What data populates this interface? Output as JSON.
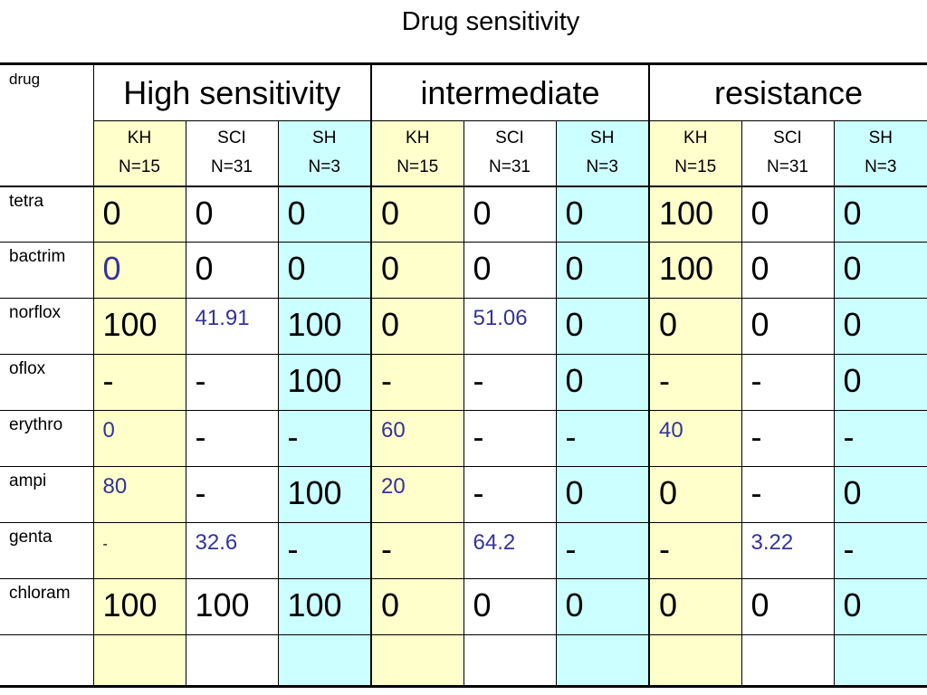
{
  "title": "Drug sensitivity",
  "drug_header": "drug",
  "groups": [
    "High sensitivity",
    "intermediate",
    "resistance"
  ],
  "subheaders": [
    {
      "name": "KH",
      "n": "N=15"
    },
    {
      "name": "SCI",
      "n": "N=31"
    },
    {
      "name": "SH",
      "n": "N=3"
    },
    {
      "name": "KH",
      "n": "N=15"
    },
    {
      "name": "SCI",
      "n": "N=31"
    },
    {
      "name": "SH",
      "n": "N=3"
    },
    {
      "name": "KH",
      "n": "N=15"
    },
    {
      "name": "SCI",
      "n": "N=31"
    },
    {
      "name": "SH",
      "n": "N=3"
    }
  ],
  "rows": [
    {
      "drug": "tetra",
      "values": [
        "0",
        "0",
        "0",
        "0",
        "0",
        "0",
        "100",
        "0",
        "0"
      ]
    },
    {
      "drug": "bactrim",
      "values": [
        "0",
        "0",
        "0",
        "0",
        "0",
        "0",
        "100",
        "0",
        "0"
      ]
    },
    {
      "drug": "norflox",
      "values": [
        "100",
        "41.91",
        "100",
        "0",
        "51.06",
        "0",
        "0",
        "0",
        "0"
      ]
    },
    {
      "drug": "oflox",
      "values": [
        "-",
        "-",
        "100",
        "-",
        "-",
        "0",
        "-",
        "-",
        "0"
      ]
    },
    {
      "drug": "erythro",
      "values": [
        "0",
        "-",
        "-",
        "60",
        "-",
        "-",
        "40",
        "-",
        "-"
      ]
    },
    {
      "drug": "ampi",
      "values": [
        "80",
        "-",
        "100",
        "20",
        "-",
        "0",
        "0",
        "-",
        "0"
      ]
    },
    {
      "drug": "genta",
      "values": [
        "-",
        "32.6",
        "-",
        "-",
        "64.2",
        "-",
        "-",
        "3.22",
        "-"
      ]
    },
    {
      "drug": "chloram",
      "values": [
        "100",
        "100",
        "100",
        "0",
        "0",
        "0",
        "0",
        "0",
        "0"
      ]
    },
    {
      "drug": "",
      "values": [
        "",
        "",
        "",
        "",
        "",
        "",
        "",
        "",
        ""
      ]
    }
  ],
  "colors": {
    "kh_column": "#ffffcc",
    "sci_column": "#ffffff",
    "sh_column": "#ccffff",
    "highlight_text": "#33339a"
  }
}
